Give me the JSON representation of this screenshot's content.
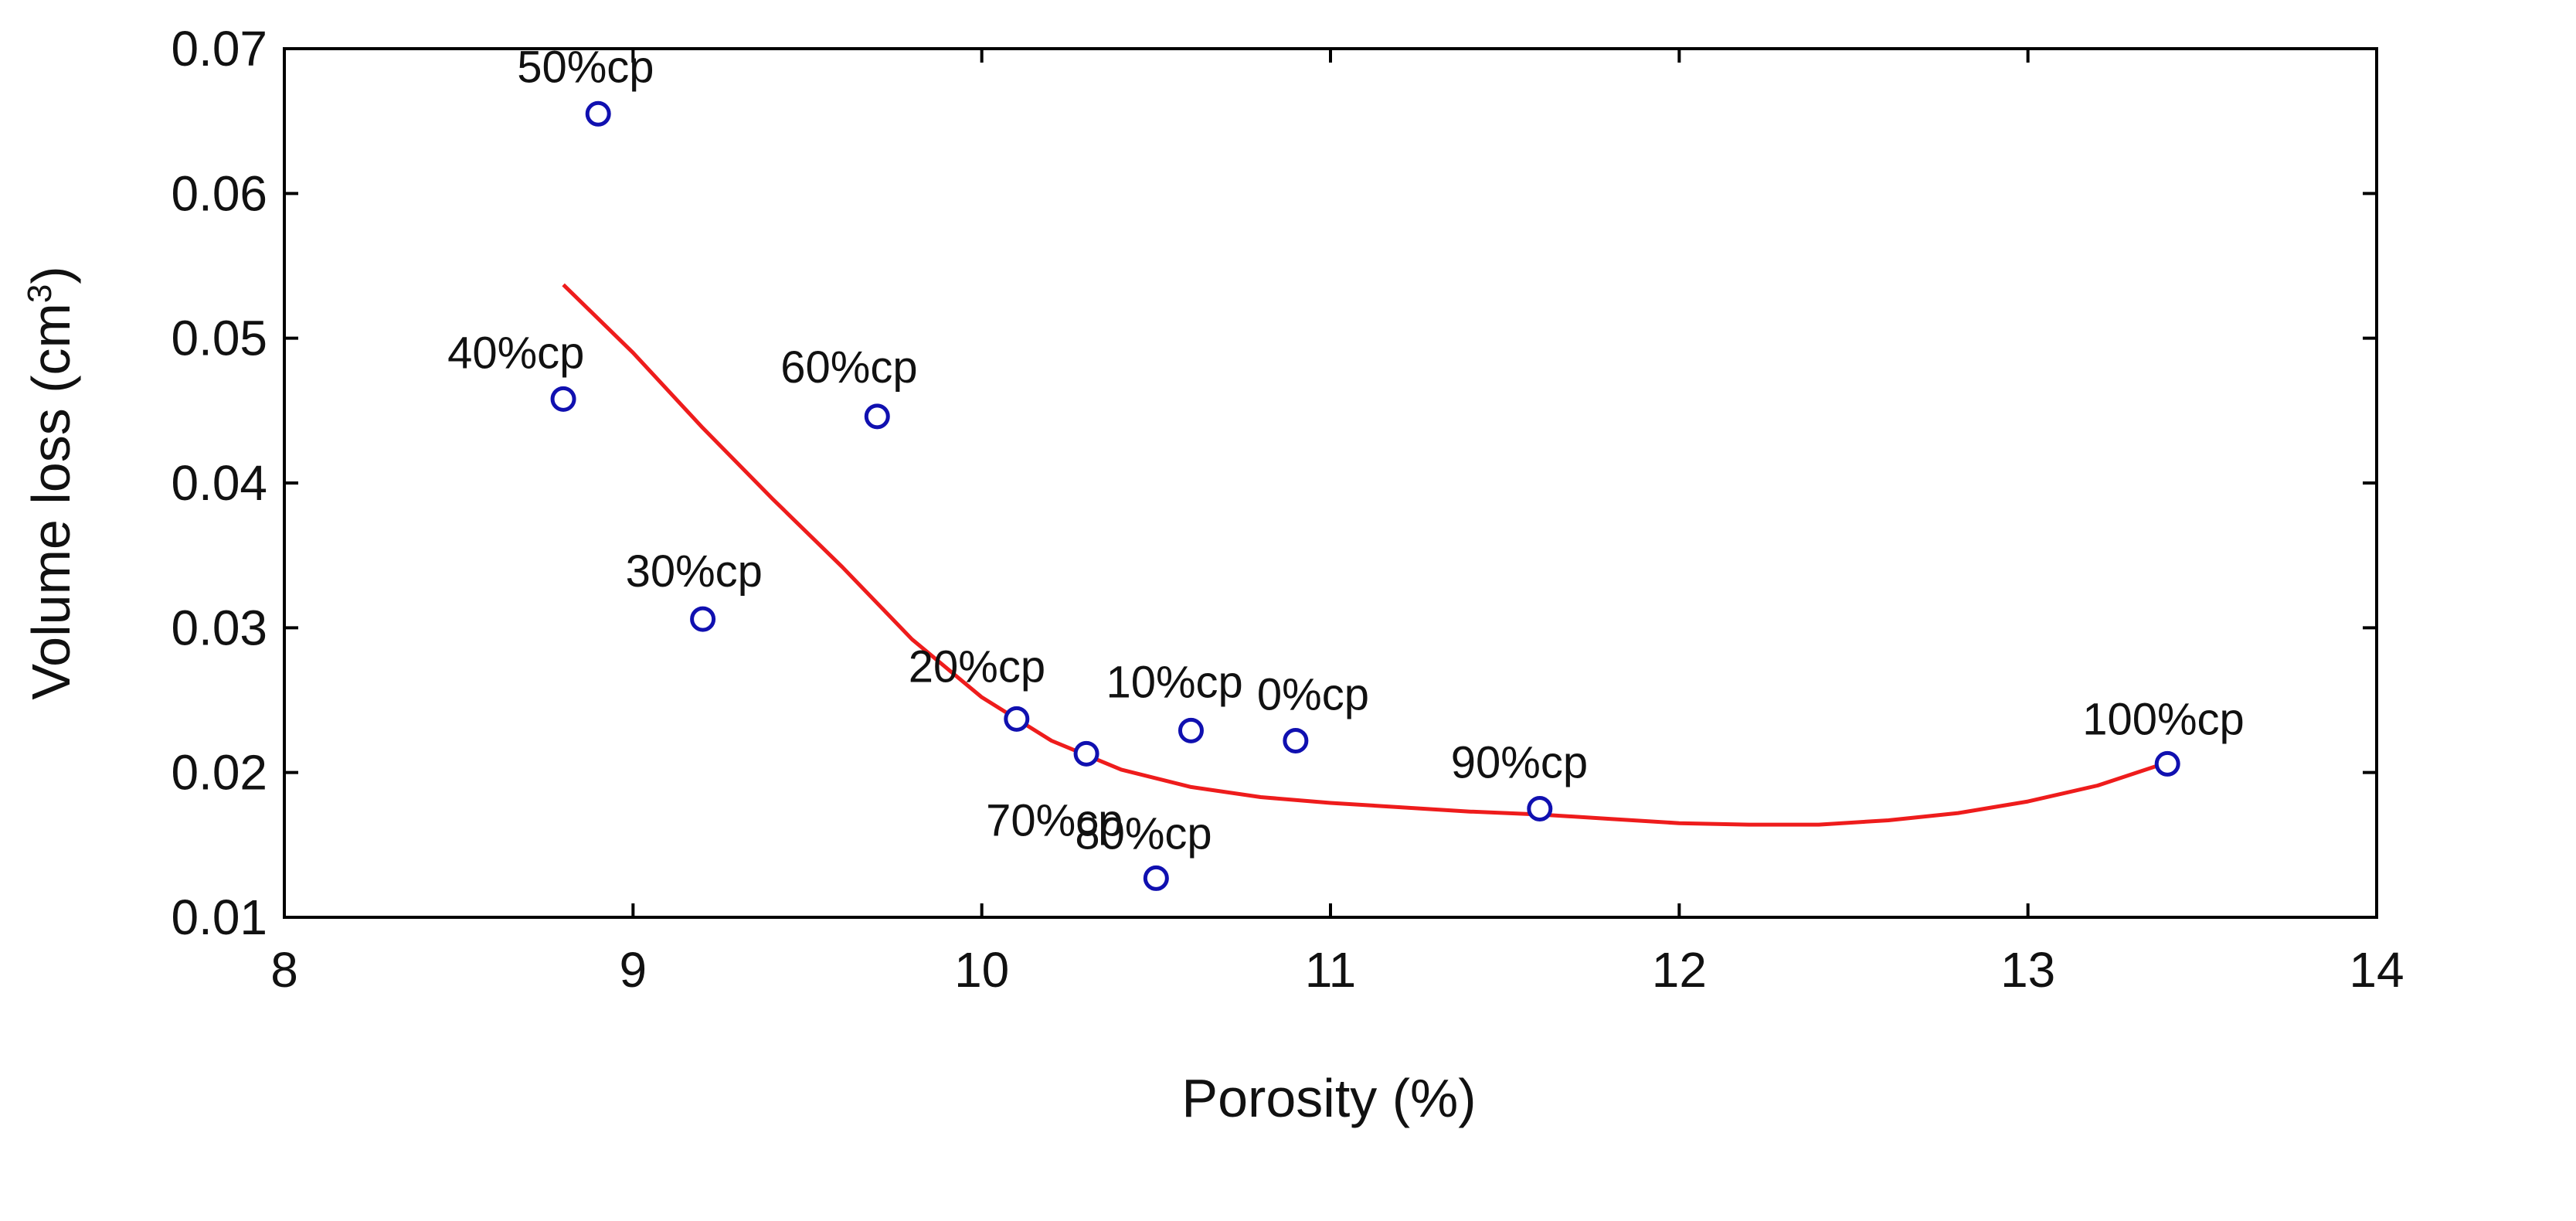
{
  "chart_data": {
    "type": "scatter",
    "title": "",
    "xlabel": "Porosity (%)",
    "ylabel_main": "Volume loss (cm",
    "ylabel_sup": "3",
    "ylabel_close": ")",
    "xlim": [
      8,
      14
    ],
    "ylim": [
      0.01,
      0.07
    ],
    "xticks": [
      8,
      9,
      10,
      11,
      12,
      13,
      14
    ],
    "xtick_labels": [
      "8",
      "9",
      "10",
      "11",
      "12",
      "13",
      "14"
    ],
    "yticks": [
      0.01,
      0.02,
      0.03,
      0.04,
      0.05,
      0.06,
      0.07
    ],
    "ytick_labels": [
      "0.01",
      "0.02",
      "0.03",
      "0.04",
      "0.05",
      "0.06",
      "0.07"
    ],
    "grid": false,
    "marker_color": "#1010b0",
    "fit_color": "#ee1c1c",
    "points": [
      {
        "label": "0%cp",
        "x": 10.9,
        "y": 0.0222
      },
      {
        "label": "10%cp",
        "x": 10.6,
        "y": 0.0229
      },
      {
        "label": "20%cp",
        "x": 10.1,
        "y": 0.0237
      },
      {
        "label": "30%cp",
        "x": 9.2,
        "y": 0.0306
      },
      {
        "label": "40%cp",
        "x": 8.8,
        "y": 0.0458
      },
      {
        "label": "50%cp",
        "x": 8.9,
        "y": 0.0655
      },
      {
        "label": "60%cp",
        "x": 9.7,
        "y": 0.0446
      },
      {
        "label": "70%cp",
        "x": 10.3,
        "y": 0.0213
      },
      {
        "label": "80%cp",
        "x": 10.5,
        "y": 0.0127
      },
      {
        "label": "90%cp",
        "x": 11.6,
        "y": 0.0175
      },
      {
        "label": "100%cp",
        "x": 13.4,
        "y": 0.0206
      }
    ],
    "fit_line": {
      "name": "fit",
      "x": [
        8.8,
        9.0,
        9.2,
        9.4,
        9.6,
        9.8,
        10.0,
        10.2,
        10.4,
        10.6,
        10.8,
        11.0,
        11.2,
        11.4,
        11.6,
        11.8,
        12.0,
        12.2,
        12.4,
        12.6,
        12.8,
        13.0,
        13.2,
        13.4
      ],
      "y": [
        0.0537,
        0.049,
        0.0438,
        0.0389,
        0.0342,
        0.0292,
        0.0252,
        0.0222,
        0.0202,
        0.019,
        0.0183,
        0.0179,
        0.0176,
        0.0173,
        0.0171,
        0.0168,
        0.0165,
        0.0164,
        0.0164,
        0.0167,
        0.0172,
        0.018,
        0.0191,
        0.0207
      ]
    }
  }
}
